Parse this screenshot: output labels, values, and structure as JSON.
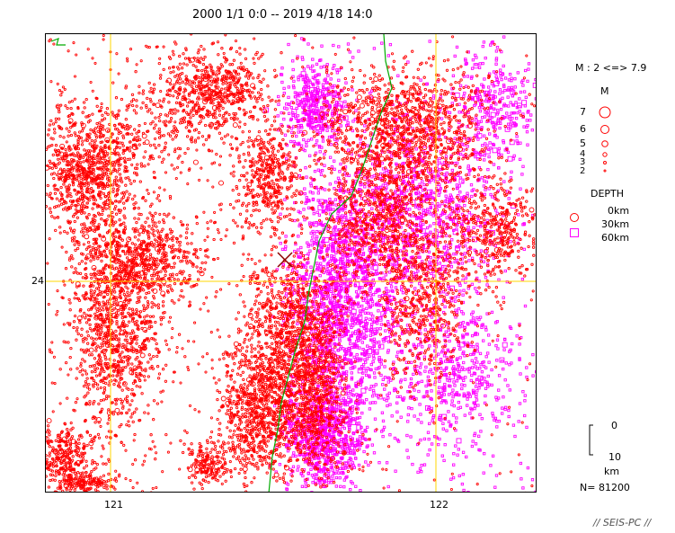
{
  "title": "2000 1/1 0:0 -- 2019 4/18 14:0",
  "axes": {
    "lon_labels": [
      "121",
      "122"
    ],
    "lat_labels": [
      "24"
    ]
  },
  "legend": {
    "magnitude_range": "M : 2 <=> 7.9",
    "magnitude_title": "M",
    "magnitude_levels": [
      "7",
      "6",
      "5",
      "4",
      "3",
      "2"
    ],
    "depth_title": "DEPTH",
    "depth_levels": [
      "0km",
      "30km",
      "60km"
    ],
    "scale_top": "0",
    "scale_bottom": "10",
    "scale_unit": "km"
  },
  "event_count": "N= 81200",
  "footer": "// SEIS-PC //",
  "colors": {
    "shallow": "#ff0000",
    "deep": "#ff00ff",
    "grid": "#ffd700",
    "coast": "#00aa00",
    "frame": "#000000"
  },
  "markers": {
    "mainshock": "x-cross"
  }
}
